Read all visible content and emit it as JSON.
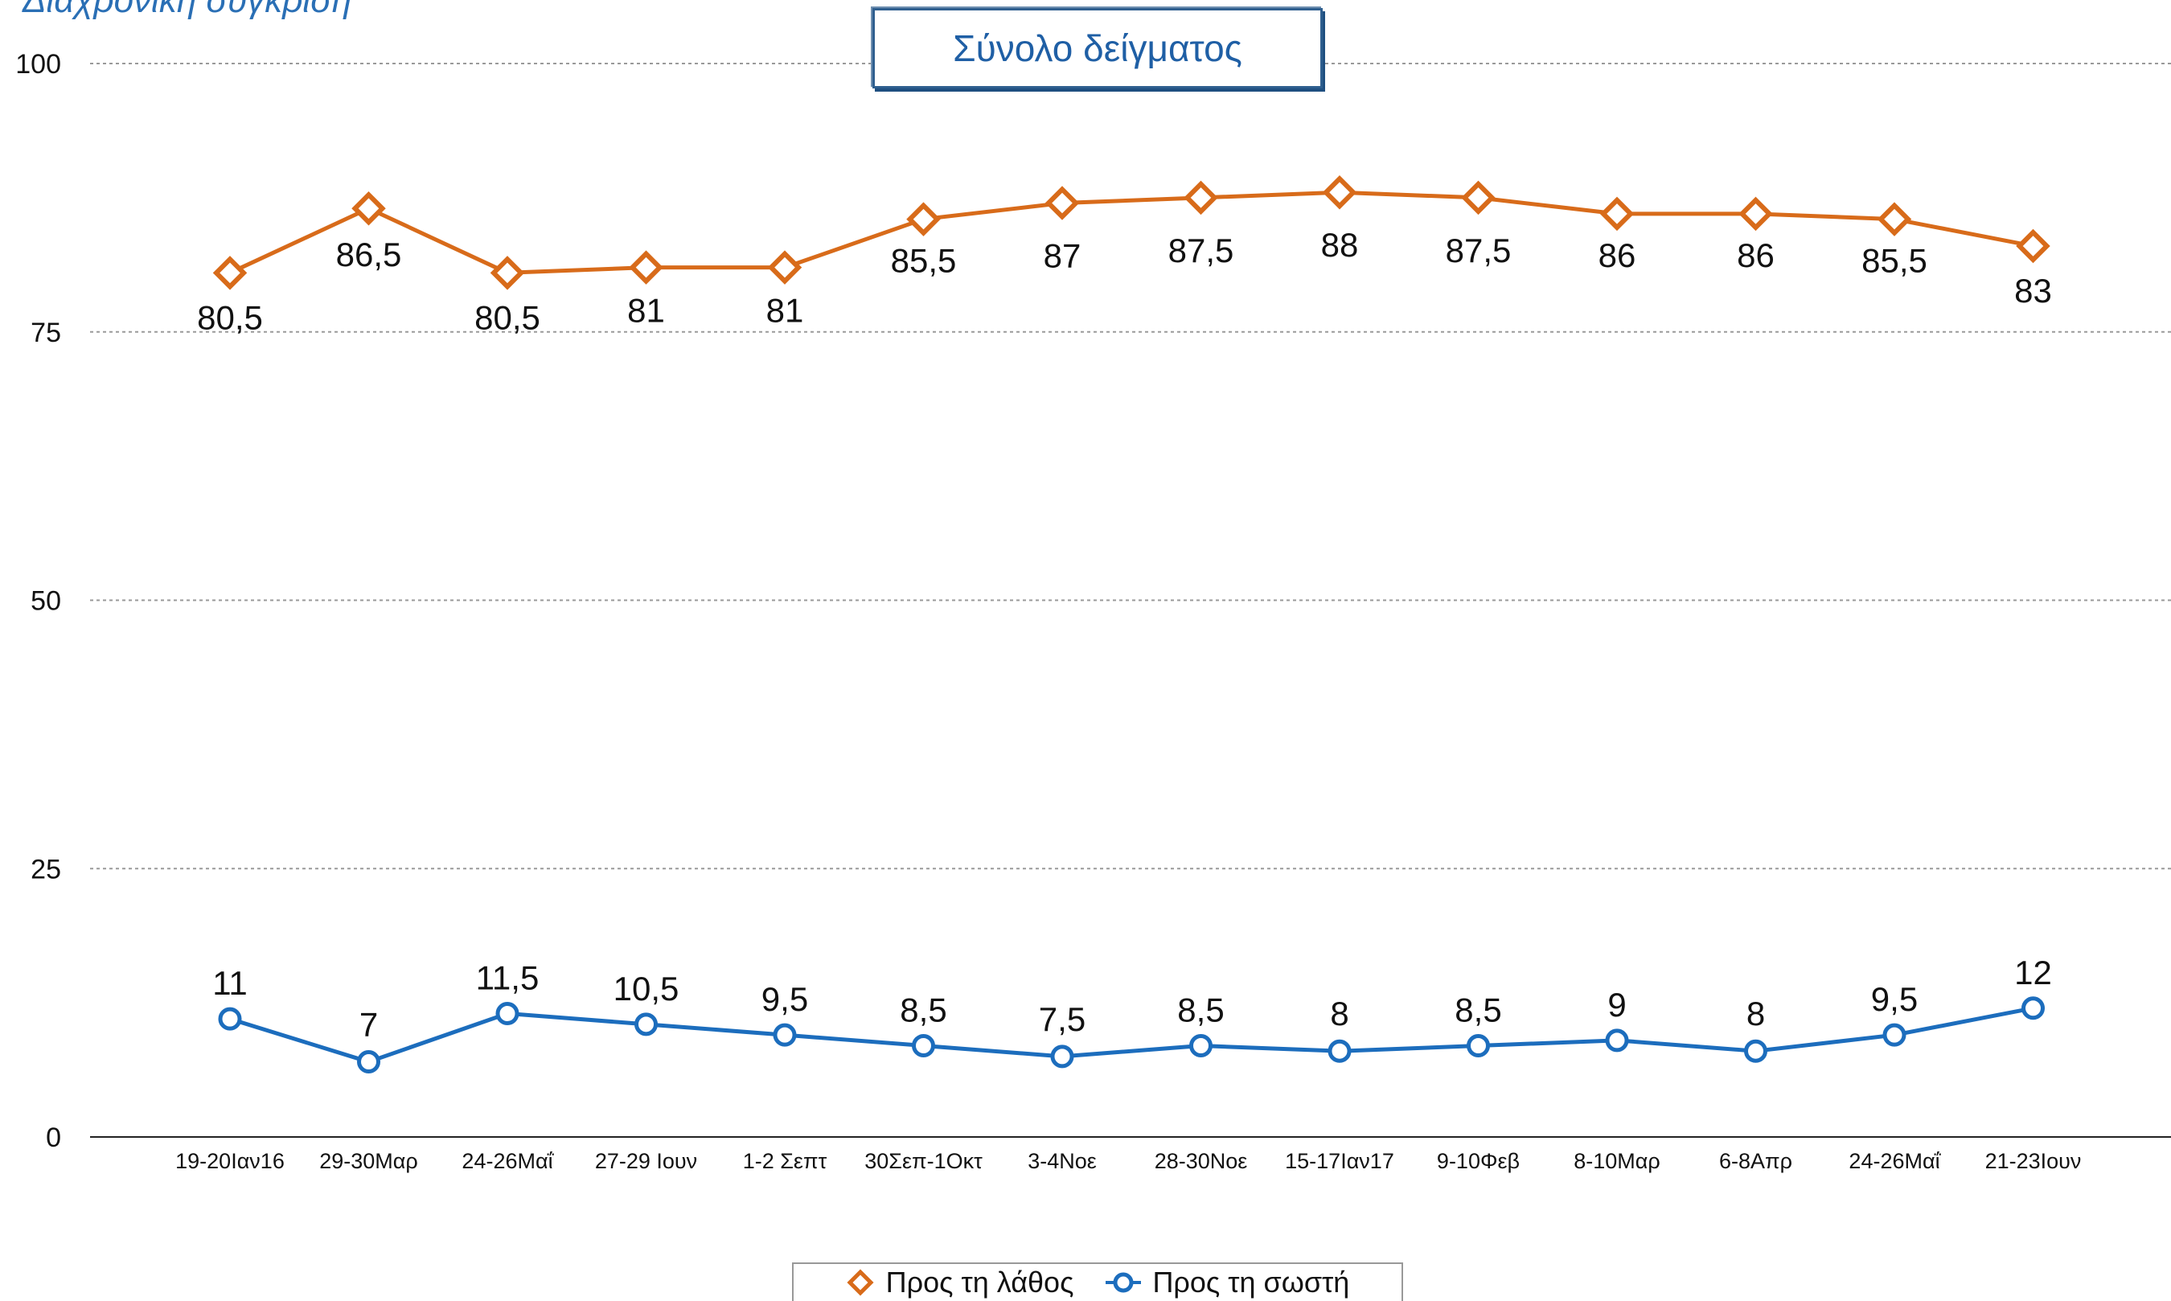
{
  "header": {
    "subtitle": "Διαχρονική σύγκριση",
    "title": "Σύνολο δείγματος"
  },
  "colors": {
    "wrong": "#d86b1a",
    "right": "#1c6dbd",
    "grid": "#9a9a9a"
  },
  "chart_data": {
    "type": "line",
    "categories": [
      "19-20Ιαν16",
      "29-30Μαρ",
      "24-26Μαΐ",
      "27-29 Ιουν",
      "1-2 Σεπτ",
      "30Σεπ-1Οκτ",
      "3-4Νοε",
      "28-30Νοε",
      "15-17Ιαν17",
      "9-10Φεβ",
      "8-10Μαρ",
      "6-8Απρ",
      "24-26Μαΐ",
      "21-23Ιουν"
    ],
    "ylim": [
      0,
      100
    ],
    "yticks": [
      0,
      25,
      50,
      75,
      100
    ],
    "grid": true,
    "legend_position": "bottom",
    "series": [
      {
        "name": "Προς τη λάθος",
        "marker": "diamond",
        "values": [
          80.5,
          86.5,
          80.5,
          81,
          81,
          85.5,
          87,
          87.5,
          88,
          87.5,
          86,
          86,
          85.5,
          83
        ],
        "labels": [
          "80,5",
          "86,5",
          "80,5",
          "81",
          "81",
          "85,5",
          "87",
          "87,5",
          "88",
          "87,5",
          "86",
          "86",
          "85,5",
          "83"
        ]
      },
      {
        "name": "Προς τη σωστή",
        "marker": "circle",
        "values": [
          11,
          7,
          11.5,
          10.5,
          9.5,
          8.5,
          7.5,
          8.5,
          8,
          8.5,
          9,
          8,
          9.5,
          12
        ],
        "labels": [
          "11",
          "7",
          "11,5",
          "10,5",
          "9,5",
          "8,5",
          "7,5",
          "8,5",
          "8",
          "8,5",
          "9",
          "8",
          "9,5",
          "12"
        ]
      }
    ]
  }
}
